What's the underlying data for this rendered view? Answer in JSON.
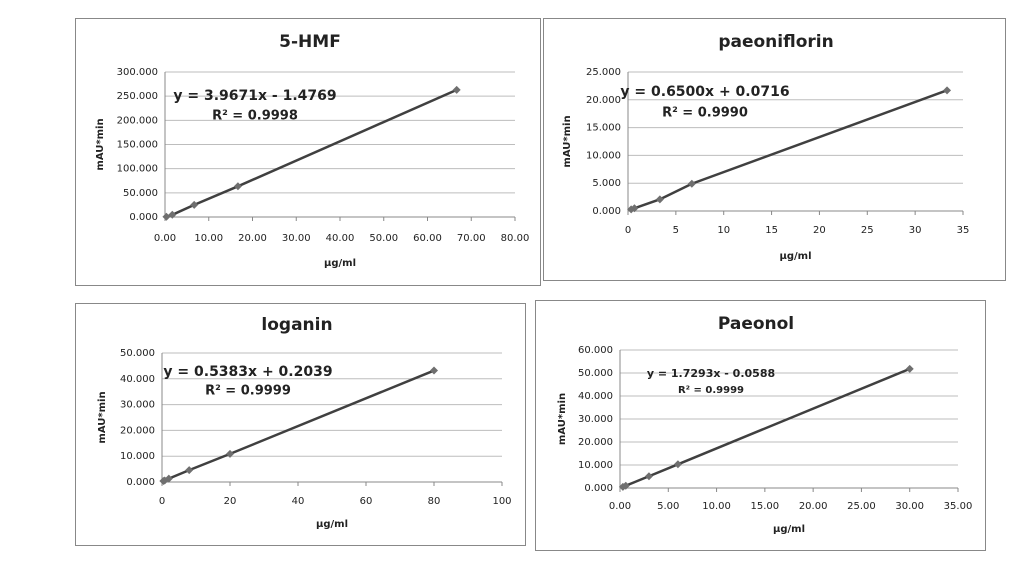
{
  "chart_data": [
    {
      "type": "scatter",
      "title": "5-HMF",
      "equation": "y = 3.9671x - 1.4769",
      "r2": "R² = 0.9998",
      "xlabel": "μg/ml",
      "ylabel": "mAU*min",
      "color": "#404040",
      "grid": true,
      "x": [
        0.33,
        1.67,
        6.67,
        16.67,
        66.67
      ],
      "values": [
        0.5,
        4.6,
        25.0,
        63.5,
        263.0
      ],
      "xlim": [
        0,
        80
      ],
      "ylim": [
        0,
        300
      ],
      "xticks": [
        {
          "value": 0,
          "label": "0.00"
        },
        {
          "value": 10,
          "label": "10.00"
        },
        {
          "value": 20,
          "label": "20.00"
        },
        {
          "value": 30,
          "label": "30.00"
        },
        {
          "value": 40,
          "label": "40.00"
        },
        {
          "value": 50,
          "label": "50.00"
        },
        {
          "value": 60,
          "label": "60.00"
        },
        {
          "value": 70,
          "label": "70.00"
        },
        {
          "value": 80,
          "label": "80.00"
        }
      ],
      "yticks": [
        {
          "value": 0,
          "label": "0.000"
        },
        {
          "value": 50,
          "label": "50.000"
        },
        {
          "value": 100,
          "label": "100.000"
        },
        {
          "value": 150,
          "label": "150.000"
        },
        {
          "value": 200,
          "label": "200.000"
        },
        {
          "value": 250,
          "label": "250.000"
        },
        {
          "value": 300,
          "label": "300.000"
        }
      ]
    },
    {
      "type": "scatter",
      "title": "paeoniflorin",
      "equation": "y = 0.6500x + 0.0716",
      "r2": "R² = 0.9990",
      "xlabel": "μg/ml",
      "ylabel": "mAU*min",
      "color": "#404040",
      "grid": true,
      "x": [
        0.33,
        0.67,
        3.33,
        6.67,
        33.33
      ],
      "values": [
        0.3,
        0.5,
        2.1,
        4.9,
        21.7
      ],
      "xlim": [
        0,
        35
      ],
      "ylim": [
        0,
        25
      ],
      "xticks": [
        0,
        5,
        10,
        15,
        20,
        25,
        30,
        35
      ],
      "yticks": [
        {
          "value": 0,
          "label": "0.000"
        },
        {
          "value": 5,
          "label": "5.000"
        },
        {
          "value": 10,
          "label": "10.000"
        },
        {
          "value": 15,
          "label": "15.000"
        },
        {
          "value": 20,
          "label": "20.000"
        },
        {
          "value": 25,
          "label": "25.000"
        }
      ]
    },
    {
      "type": "scatter",
      "title": "loganin",
      "equation": "y = 0.5383x + 0.2039",
      "r2": "R² = 0.9999",
      "xlabel": "μg/ml",
      "ylabel": "mAU*min",
      "color": "#404040",
      "grid": true,
      "x": [
        0.4,
        0.8,
        2,
        8,
        20,
        80
      ],
      "values": [
        0.4,
        0.6,
        1.3,
        4.6,
        10.9,
        43.2
      ],
      "xlim": [
        0,
        100
      ],
      "ylim": [
        0,
        50
      ],
      "xticks": [
        0,
        20,
        40,
        60,
        80,
        100
      ],
      "yticks": [
        {
          "value": 0,
          "label": "0.000"
        },
        {
          "value": 10,
          "label": "10.000"
        },
        {
          "value": 20,
          "label": "20.000"
        },
        {
          "value": 30,
          "label": "30.000"
        },
        {
          "value": 40,
          "label": "40.000"
        },
        {
          "value": 50,
          "label": "50.000"
        }
      ]
    },
    {
      "type": "scatter",
      "title": "Paeonol",
      "equation": "y = 1.7293x - 0.0588",
      "r2": "R² = 0.9999",
      "xlabel": "μg/ml",
      "ylabel": "mAU*min",
      "color": "#404040",
      "grid": true,
      "x": [
        0.3,
        0.6,
        3,
        6,
        30
      ],
      "values": [
        0.5,
        1.0,
        5.1,
        10.3,
        51.8
      ],
      "xlim": [
        0,
        35
      ],
      "ylim": [
        0,
        60
      ],
      "xticks": [
        {
          "value": 0,
          "label": "0.00"
        },
        {
          "value": 5,
          "label": "5.00"
        },
        {
          "value": 10,
          "label": "10.00"
        },
        {
          "value": 15,
          "label": "15.00"
        },
        {
          "value": 20,
          "label": "20.00"
        },
        {
          "value": 25,
          "label": "25.00"
        },
        {
          "value": 30,
          "label": "30.00"
        },
        {
          "value": 35,
          "label": "35.00"
        }
      ],
      "yticks": [
        {
          "value": 0,
          "label": "0.000"
        },
        {
          "value": 10,
          "label": "10.000"
        },
        {
          "value": 20,
          "label": "20.000"
        },
        {
          "value": 30,
          "label": "30.000"
        },
        {
          "value": 40,
          "label": "40.000"
        },
        {
          "value": 50,
          "label": "50.000"
        },
        {
          "value": 60,
          "label": "60.000"
        }
      ]
    }
  ]
}
